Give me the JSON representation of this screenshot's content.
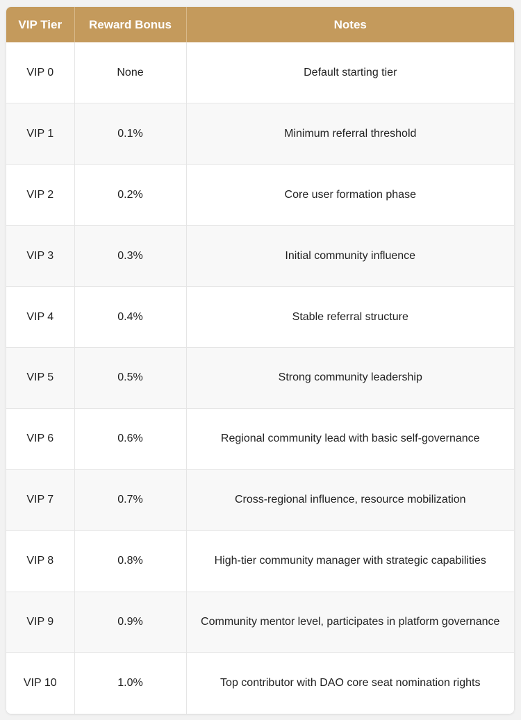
{
  "colors": {
    "header_bg": "#c49a5c",
    "header_text": "#ffffff",
    "row_alt_bg": "#f8f8f8",
    "border": "#e5e5e5"
  },
  "table": {
    "headers": [
      "VIP Tier",
      "Reward Bonus",
      "Notes"
    ],
    "rows": [
      {
        "tier": "VIP 0",
        "bonus": "None",
        "notes": "Default starting tier"
      },
      {
        "tier": "VIP 1",
        "bonus": "0.1%",
        "notes": "Minimum referral threshold"
      },
      {
        "tier": "VIP 2",
        "bonus": "0.2%",
        "notes": "Core user formation phase"
      },
      {
        "tier": "VIP 3",
        "bonus": "0.3%",
        "notes": "Initial community influence"
      },
      {
        "tier": "VIP 4",
        "bonus": "0.4%",
        "notes": "Stable referral structure"
      },
      {
        "tier": "VIP 5",
        "bonus": "0.5%",
        "notes": "Strong community leadership"
      },
      {
        "tier": "VIP 6",
        "bonus": "0.6%",
        "notes": "Regional community lead with basic self-governance"
      },
      {
        "tier": "VIP 7",
        "bonus": "0.7%",
        "notes": "Cross-regional influence, resource mobilization"
      },
      {
        "tier": "VIP 8",
        "bonus": "0.8%",
        "notes": "High-tier community manager with strategic capabilities"
      },
      {
        "tier": "VIP 9",
        "bonus": "0.9%",
        "notes": "Community mentor level, participates in platform governance"
      },
      {
        "tier": "VIP 10",
        "bonus": "1.0%",
        "notes": "Top contributor with DAO core seat nomination rights"
      }
    ]
  }
}
